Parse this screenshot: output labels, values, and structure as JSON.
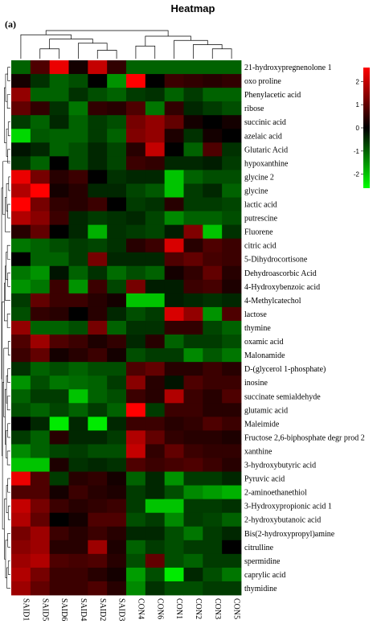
{
  "chart_data": {
    "type": "heatmap",
    "title": "Heatmap",
    "panel_label": "(a)",
    "columns": [
      "SAID1",
      "SAID5",
      "SAID6",
      "SAID4",
      "SAID2",
      "SAID3",
      "CON4",
      "CON6",
      "CON1",
      "CON2",
      "CON3",
      "CON5"
    ],
    "rows": [
      "21-hydroxypregnenolone 1",
      "oxo proline",
      "Phenylacetic acid",
      "ribose",
      "succinic acid",
      "azelaic acid",
      "Glutaric Acid",
      "hypoxanthine",
      "glycine 2",
      "glycine",
      "lactic acid",
      "putrescine",
      "Fluorene",
      "citric acid",
      "5-Dihydrocortisone",
      "Dehydroascorbic Acid",
      "4-Hydroxybenzoic acid",
      "4-Methylcatechol",
      "lactose",
      "thymine",
      "oxamic acid",
      "Malonamide",
      "D-(glycerol 1-phosphate)",
      "inosine",
      "succinate semialdehyde",
      "glutamic acid",
      "Maleimide",
      "Fructose 2,6-biphosphate degr prod 2",
      "xanthine",
      "3-hydroxybutyric acid",
      "Pyruvic acid",
      "2-aminoethanethiol",
      "3-Hydroxypropionic acid 1",
      "2-hydroxybutanoic acid",
      "Bis(2-hydroxypropyl)amine",
      "citrulline",
      "spermidine",
      "caprylic acid",
      "thymidine"
    ],
    "values": [
      [
        -1.0,
        0.8,
        2.4,
        0.2,
        2.0,
        0.5,
        -1.0,
        -1.0,
        -1.0,
        -1.0,
        -1.0,
        -1.0
      ],
      [
        0.2,
        -0.5,
        -1.0,
        -0.8,
        0.0,
        -1.5,
        2.6,
        0.0,
        0.6,
        0.5,
        0.4,
        0.5
      ],
      [
        1.5,
        -1.0,
        -1.0,
        -0.5,
        -0.8,
        -1.0,
        -0.6,
        -0.5,
        -1.0,
        -0.6,
        -1.0,
        -1.0
      ],
      [
        1.0,
        0.5,
        -0.5,
        -1.2,
        0.5,
        0.4,
        0.8,
        -1.2,
        0.5,
        -0.4,
        -0.6,
        -0.8
      ],
      [
        -0.6,
        -1.0,
        -0.4,
        -1.0,
        -0.6,
        -0.8,
        1.2,
        1.5,
        1.0,
        0.2,
        0.0,
        0.2
      ],
      [
        -2.2,
        -0.9,
        -1.0,
        -1.0,
        -0.6,
        -1.0,
        1.3,
        1.5,
        0.3,
        -0.5,
        0.2,
        0.0
      ],
      [
        -0.2,
        -0.4,
        -1.0,
        -0.8,
        -0.4,
        -0.7,
        0.4,
        2.0,
        0.0,
        -1.0,
        0.8,
        -0.5
      ],
      [
        -0.5,
        -1.0,
        0.0,
        -0.8,
        -0.4,
        -0.7,
        0.6,
        0.5,
        -0.4,
        -0.4,
        -0.3,
        -0.6
      ],
      [
        2.4,
        1.2,
        0.4,
        0.6,
        0.0,
        -0.5,
        -0.4,
        -0.4,
        -2.0,
        -1.0,
        -0.8,
        -0.8
      ],
      [
        1.8,
        2.6,
        0.2,
        0.4,
        -0.4,
        -0.4,
        -0.7,
        -0.9,
        -2.0,
        -0.6,
        -0.4,
        -1.0
      ],
      [
        2.6,
        1.2,
        0.5,
        0.4,
        0.6,
        0.0,
        -0.6,
        -0.5,
        0.4,
        -0.6,
        -0.6,
        -0.7
      ],
      [
        1.8,
        1.4,
        0.6,
        -0.4,
        -0.6,
        -0.5,
        -0.4,
        -0.7,
        -1.4,
        -1.0,
        -1.0,
        -0.8
      ],
      [
        0.4,
        1.0,
        0.0,
        -0.4,
        -1.8,
        -0.5,
        -0.6,
        -0.7,
        -0.3,
        1.3,
        -2.0,
        -0.5
      ],
      [
        -1.2,
        -1.0,
        -0.8,
        -0.6,
        -0.7,
        -0.5,
        0.4,
        0.6,
        2.2,
        0.4,
        0.8,
        0.6
      ],
      [
        0.0,
        -1.0,
        -1.0,
        -0.6,
        1.2,
        -0.4,
        -0.4,
        -0.4,
        0.8,
        1.0,
        0.7,
        0.6
      ],
      [
        -1.2,
        -1.5,
        -0.2,
        -1.0,
        -0.5,
        -1.1,
        -0.8,
        -1.0,
        0.2,
        0.5,
        1.0,
        0.4
      ],
      [
        -1.5,
        -1.2,
        0.6,
        -1.5,
        0.6,
        -0.7,
        1.2,
        -0.3,
        -0.3,
        0.6,
        0.7,
        0.3
      ],
      [
        -0.6,
        1.0,
        0.6,
        0.6,
        0.4,
        0.2,
        -2.0,
        -2.0,
        -0.3,
        -0.4,
        -0.5,
        -0.4
      ],
      [
        -0.8,
        0.5,
        0.4,
        0.0,
        0.4,
        -0.4,
        -0.8,
        -0.6,
        2.2,
        1.5,
        -1.5,
        0.8
      ],
      [
        1.5,
        -1.0,
        -1.0,
        -0.8,
        1.2,
        -1.0,
        -0.5,
        -0.5,
        0.5,
        0.5,
        -0.7,
        -1.0
      ],
      [
        0.8,
        1.6,
        0.8,
        0.6,
        0.3,
        0.5,
        -0.4,
        0.4,
        -1.0,
        -0.6,
        -0.6,
        -0.8
      ],
      [
        0.6,
        1.0,
        0.2,
        0.4,
        0.6,
        0.2,
        -0.8,
        -0.6,
        -0.6,
        -1.4,
        -0.9,
        -1.2
      ],
      [
        -0.5,
        -1.0,
        -0.8,
        -1.0,
        -0.8,
        -0.8,
        0.8,
        1.0,
        0.4,
        0.4,
        0.6,
        0.4
      ],
      [
        -1.5,
        -0.8,
        -1.2,
        -1.1,
        -1.0,
        -0.6,
        1.4,
        0.4,
        -0.2,
        0.8,
        0.6,
        0.6
      ],
      [
        -1.0,
        -0.6,
        -0.6,
        -2.0,
        -1.0,
        -0.8,
        0.6,
        0.4,
        1.8,
        0.6,
        0.4,
        0.8
      ],
      [
        -0.8,
        -1.0,
        -0.7,
        -1.0,
        -0.6,
        -1.0,
        2.6,
        -0.6,
        0.6,
        0.6,
        0.4,
        0.4
      ],
      [
        0.0,
        -0.4,
        -2.4,
        -0.4,
        -2.4,
        -0.4,
        0.6,
        0.6,
        0.4,
        0.5,
        0.8,
        0.6
      ],
      [
        -0.6,
        -1.0,
        0.4,
        -0.4,
        -0.4,
        -0.6,
        1.8,
        1.0,
        0.5,
        0.4,
        0.4,
        0.3
      ],
      [
        -1.4,
        -1.0,
        -0.7,
        -0.6,
        -0.8,
        -0.8,
        2.0,
        0.5,
        1.0,
        0.6,
        0.5,
        0.5
      ],
      [
        -2.0,
        -2.0,
        0.3,
        -0.5,
        -0.4,
        -0.5,
        0.8,
        0.6,
        0.7,
        0.8,
        0.6,
        0.4
      ],
      [
        2.4,
        0.8,
        -0.6,
        0.4,
        0.5,
        0.2,
        -1.0,
        -0.4,
        -1.5,
        -0.6,
        -0.6,
        -0.4
      ],
      [
        0.8,
        0.8,
        0.2,
        0.6,
        0.4,
        0.3,
        -0.6,
        -0.4,
        -0.8,
        -1.4,
        -1.6,
        -1.8
      ],
      [
        2.0,
        1.2,
        0.6,
        0.4,
        0.5,
        0.6,
        -0.6,
        -2.0,
        -2.0,
        -0.6,
        -0.6,
        -0.5
      ],
      [
        1.8,
        1.0,
        0.0,
        0.2,
        0.8,
        0.8,
        -0.8,
        -0.6,
        -1.4,
        -0.6,
        -0.7,
        -1.0
      ],
      [
        1.2,
        1.6,
        0.6,
        0.4,
        0.6,
        0.4,
        -0.4,
        -0.4,
        -0.8,
        -1.2,
        -0.6,
        -0.4
      ],
      [
        1.4,
        1.6,
        0.4,
        0.4,
        1.6,
        0.3,
        -1.0,
        -0.6,
        -0.8,
        -0.6,
        -0.6,
        0.0
      ],
      [
        1.6,
        1.8,
        0.8,
        0.7,
        0.8,
        0.4,
        -0.8,
        1.0,
        -0.8,
        -1.0,
        -0.6,
        -0.6
      ],
      [
        1.8,
        1.2,
        0.6,
        0.6,
        0.4,
        0.2,
        -1.6,
        -0.8,
        -2.4,
        -0.4,
        -0.8,
        -1.2
      ],
      [
        1.6,
        1.0,
        0.6,
        0.6,
        0.8,
        0.4,
        -1.4,
        -0.5,
        -0.8,
        -0.8,
        -0.6,
        -0.6
      ]
    ],
    "col_dendrogram": [
      {
        "a": 1,
        "b": 2,
        "h": 0.35
      },
      {
        "a": 4,
        "b": 5,
        "h": 0.3
      },
      {
        "a": 3,
        "b": 4.5,
        "h": 0.55
      },
      {
        "a": 1.5,
        "b": 3.75,
        "h": 0.7
      },
      {
        "a": 0,
        "b": 2.625,
        "h": 0.85
      },
      {
        "a": 6,
        "b": 7,
        "h": 0.45
      },
      {
        "a": 10,
        "b": 11,
        "h": 0.35
      },
      {
        "a": 9,
        "b": 10.5,
        "h": 0.5
      },
      {
        "a": 8,
        "b": 9.75,
        "h": 0.65
      },
      {
        "a": 6.5,
        "b": 8.875,
        "h": 0.8
      },
      {
        "a": 1.3125,
        "b": 7.6875,
        "h": 1.0
      }
    ],
    "row_dendrogram": [
      {
        "a": 0,
        "b": 1,
        "h": 0.3
      },
      {
        "a": 2,
        "b": 3,
        "h": 0.35
      },
      {
        "a": 0.5,
        "b": 2.5,
        "h": 0.55
      },
      {
        "a": 4,
        "b": 5,
        "h": 0.25
      },
      {
        "a": 6,
        "b": 7,
        "h": 0.3
      },
      {
        "a": 4.5,
        "b": 6.5,
        "h": 0.45
      },
      {
        "a": 1.5,
        "b": 5.5,
        "h": 0.7
      },
      {
        "a": 8,
        "b": 9,
        "h": 0.2
      },
      {
        "a": 10,
        "b": 11,
        "h": 0.3
      },
      {
        "a": 8.5,
        "b": 10.5,
        "h": 0.45
      },
      {
        "a": 9.5,
        "b": 12,
        "h": 0.6
      },
      {
        "a": 13,
        "b": 14,
        "h": 0.35
      },
      {
        "a": 15,
        "b": 16,
        "h": 0.3
      },
      {
        "a": 13.5,
        "b": 15.5,
        "h": 0.5
      },
      {
        "a": 14.5,
        "b": 17,
        "h": 0.6
      },
      {
        "a": 18,
        "b": 19,
        "h": 0.35
      },
      {
        "a": 15.75,
        "b": 18.5,
        "h": 0.7
      },
      {
        "a": 20,
        "b": 21,
        "h": 0.25
      },
      {
        "a": 22,
        "b": 23,
        "h": 0.3
      },
      {
        "a": 24,
        "b": 25,
        "h": 0.35
      },
      {
        "a": 22.5,
        "b": 24.5,
        "h": 0.45
      },
      {
        "a": 26,
        "b": 27,
        "h": 0.3
      },
      {
        "a": 28,
        "b": 29,
        "h": 0.35
      },
      {
        "a": 26.5,
        "b": 28.5,
        "h": 0.5
      },
      {
        "a": 23.5,
        "b": 27.5,
        "h": 0.6
      },
      {
        "a": 20.5,
        "b": 25.5,
        "h": 0.75
      },
      {
        "a": 30,
        "b": 31,
        "h": 0.3
      },
      {
        "a": 32,
        "b": 33,
        "h": 0.25
      },
      {
        "a": 30.5,
        "b": 32.5,
        "h": 0.45
      },
      {
        "a": 34,
        "b": 35,
        "h": 0.3
      },
      {
        "a": 36,
        "b": 37,
        "h": 0.25
      },
      {
        "a": 36.5,
        "b": 38,
        "h": 0.4
      },
      {
        "a": 34.5,
        "b": 37.25,
        "h": 0.55
      },
      {
        "a": 31.5,
        "b": 35.875,
        "h": 0.7
      },
      {
        "a": 23,
        "b": 33.6875,
        "h": 0.9
      },
      {
        "a": 17.125,
        "b": 28.34375,
        "h": 0.95
      },
      {
        "a": 6.875,
        "b": 10.75,
        "h": 0.85
      },
      {
        "a": 8.8125,
        "b": 22.734375,
        "h": 1.0
      }
    ],
    "legend": {
      "ticks": [
        2,
        1,
        0,
        -1,
        -2
      ],
      "range": [
        -2.6,
        2.6
      ],
      "placement": "top-right"
    },
    "colors": {
      "high": "#ff0000",
      "mid": "#000000",
      "low": "#00ff00"
    }
  }
}
